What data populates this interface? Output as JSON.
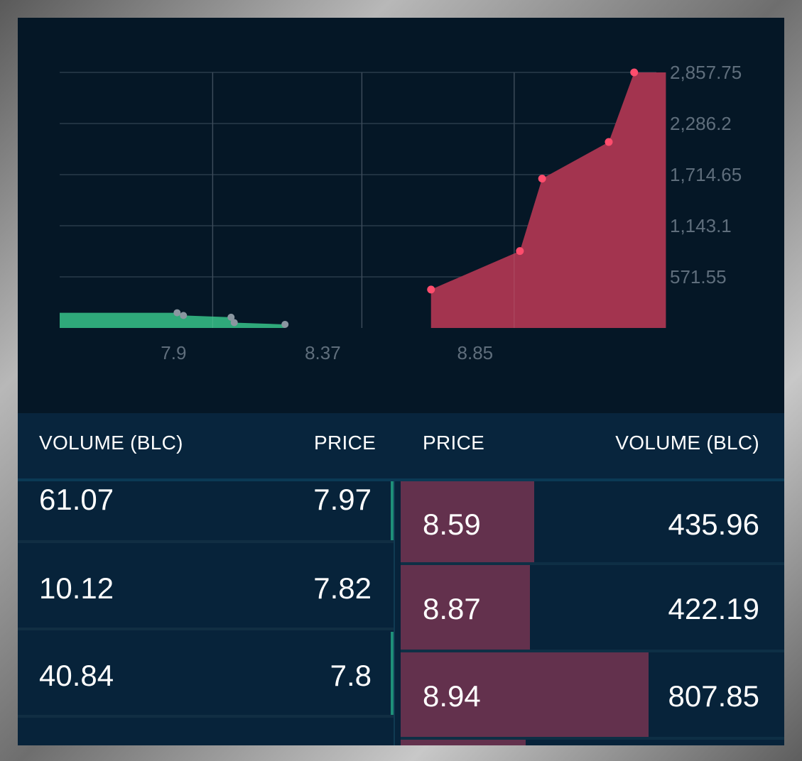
{
  "chart": {
    "y_tick_labels": [
      "2,857.75",
      "2,286.2",
      "1,714.65",
      "1,143.1",
      "571.55"
    ],
    "x_tick_labels": [
      "7.9",
      "8.37",
      "8.85"
    ],
    "colors": {
      "bid": "#2fa97a",
      "ask": "#a3344f",
      "ask_point": "#ff4d6d",
      "bid_point": "#8a96a0"
    }
  },
  "chart_data": {
    "type": "area",
    "x_axis_ticks": [
      7.9,
      8.37,
      8.85
    ],
    "y_axis_ticks": [
      2857.75,
      2286.2,
      1714.65,
      1143.1,
      571.55
    ],
    "ylim": [
      0,
      2857.75
    ],
    "grid": true,
    "series": [
      {
        "x": [
          7.55,
          7.92,
          7.94,
          8.09,
          8.1,
          8.26
        ],
        "y": [
          170,
          170,
          140,
          120,
          60,
          40
        ]
      },
      {
        "x": [
          8.72,
          9.0,
          9.07,
          9.28,
          9.36,
          9.46
        ],
        "y": [
          430,
          860,
          1670,
          2080,
          2857.75,
          2857.75
        ]
      }
    ]
  },
  "order_book": {
    "headers": {
      "bid_volume": "VOLUME (BLC)",
      "bid_price": "PRICE",
      "ask_price": "PRICE",
      "ask_volume": "VOLUME (BLC)"
    },
    "bids": [
      {
        "volume": "61.07",
        "price": "7.97",
        "depth": 1
      },
      {
        "volume": "10.12",
        "price": "7.82",
        "depth": 0
      },
      {
        "volume": "40.84",
        "price": "7.8",
        "depth": 1
      }
    ],
    "asks": [
      {
        "price": "8.59",
        "volume": "435.96",
        "depth": 0.35
      },
      {
        "price": "8.87",
        "volume": "422.19",
        "depth": 0.34
      },
      {
        "price": "8.94",
        "volume": "807.85",
        "depth": 0.65
      },
      {
        "price": "",
        "volume": "",
        "depth": 0.33
      }
    ]
  }
}
